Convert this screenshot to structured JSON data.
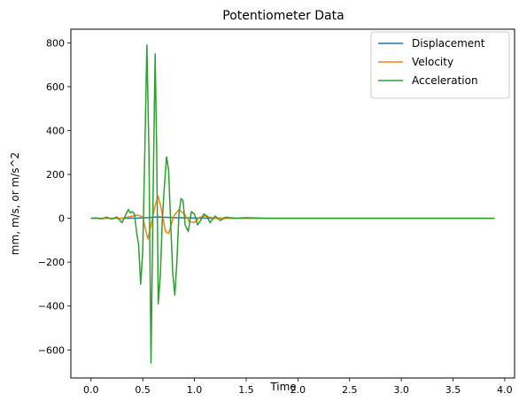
{
  "chart_data": {
    "type": "line",
    "title": "Potentiometer Data",
    "xlabel": "Time",
    "ylabel": "mm, m/s, or m/s^2",
    "xlim": [
      -0.195,
      4.095
    ],
    "ylim": [
      -728,
      862
    ],
    "x_ticks": [
      0.0,
      0.5,
      1.0,
      1.5,
      2.0,
      2.5,
      3.0,
      3.5,
      4.0
    ],
    "x_tick_labels": [
      "0.0",
      "0.5",
      "1.0",
      "1.5",
      "2.0",
      "2.5",
      "3.0",
      "3.5",
      "4.0"
    ],
    "y_ticks": [
      -600,
      -400,
      -200,
      0,
      200,
      400,
      600,
      800
    ],
    "y_tick_labels": [
      "−600",
      "−400",
      "−200",
      "0",
      "200",
      "400",
      "600",
      "800"
    ],
    "grid": false,
    "legend_position": "top-right",
    "series": [
      {
        "name": "Displacement",
        "color": "#1f77b4",
        "x": [
          0.0,
          0.3,
          0.45,
          0.5,
          0.55,
          0.6,
          0.65,
          0.7,
          0.75,
          0.8,
          0.9,
          1.0,
          1.2,
          1.5,
          2.0,
          2.5,
          3.0,
          3.5,
          3.9
        ],
        "y": [
          0,
          0,
          1,
          2,
          3,
          5,
          6,
          5,
          4,
          3,
          2,
          1,
          0.5,
          0,
          0,
          0,
          0,
          0,
          0
        ]
      },
      {
        "name": "Velocity",
        "color": "#ff7f0e",
        "x": [
          0.0,
          0.3,
          0.4,
          0.45,
          0.5,
          0.55,
          0.58,
          0.62,
          0.65,
          0.68,
          0.72,
          0.75,
          0.8,
          0.85,
          0.9,
          0.95,
          1.0,
          1.05,
          1.1,
          1.2,
          1.4,
          1.6,
          2.0,
          2.5,
          3.0,
          3.5,
          3.9
        ],
        "y": [
          0,
          0,
          10,
          15,
          5,
          -95,
          -30,
          60,
          100,
          40,
          -60,
          -70,
          10,
          40,
          20,
          -15,
          -20,
          5,
          10,
          0,
          0,
          0,
          0,
          0,
          0,
          0,
          0
        ]
      },
      {
        "name": "Acceleration",
        "color": "#2ca02c",
        "x": [
          0.0,
          0.05,
          0.1,
          0.15,
          0.2,
          0.25,
          0.3,
          0.33,
          0.36,
          0.38,
          0.4,
          0.42,
          0.44,
          0.46,
          0.48,
          0.5,
          0.52,
          0.54,
          0.56,
          0.58,
          0.6,
          0.62,
          0.635,
          0.65,
          0.67,
          0.69,
          0.71,
          0.73,
          0.75,
          0.77,
          0.79,
          0.81,
          0.83,
          0.85,
          0.87,
          0.89,
          0.91,
          0.94,
          0.97,
          1.0,
          1.03,
          1.06,
          1.09,
          1.12,
          1.15,
          1.2,
          1.25,
          1.3,
          1.4,
          1.5,
          1.7,
          2.0,
          2.5,
          3.0,
          3.5,
          3.9
        ],
        "y": [
          0,
          2,
          -3,
          5,
          -4,
          6,
          -20,
          10,
          40,
          25,
          30,
          20,
          -60,
          -120,
          -300,
          -150,
          300,
          790,
          300,
          -660,
          100,
          750,
          300,
          -390,
          -260,
          0,
          150,
          280,
          220,
          -20,
          -250,
          -350,
          -200,
          20,
          90,
          80,
          -30,
          -60,
          30,
          20,
          -30,
          -10,
          20,
          10,
          -20,
          10,
          -10,
          5,
          0,
          3,
          0,
          0,
          0,
          0,
          0,
          0
        ]
      }
    ]
  }
}
